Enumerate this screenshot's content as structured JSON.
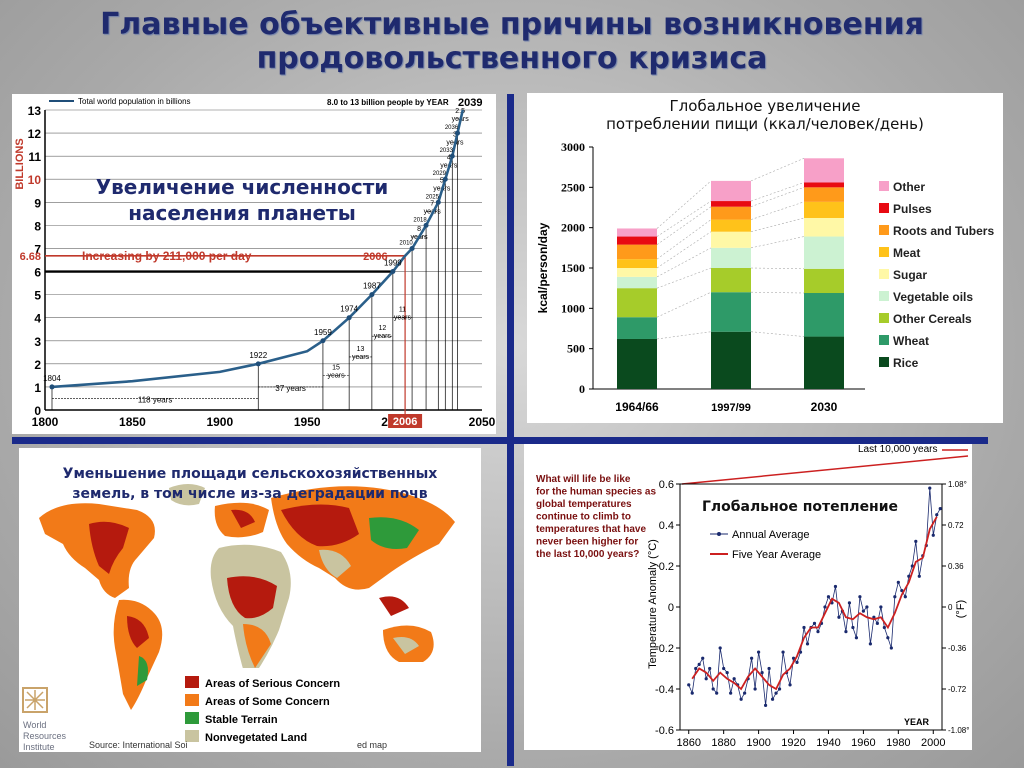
{
  "title": {
    "line1": "Главные  объективные причины возникновения",
    "line2": "продовольственного кризиса"
  },
  "panels": {
    "population": {
      "heading1": "Увеличение численности",
      "heading2": "населения планеты"
    },
    "food": {
      "heading1": "Глобальное  увеличение",
      "heading2": "потреблении пищи (ккал/человек/день)"
    },
    "land": {
      "heading1": "Уменьшение площади сельскохозяйственных",
      "heading2": "земель, в том числе из-за деградации почв"
    },
    "warming": {
      "heading": "Глобальное потепление"
    }
  },
  "chart_data": [
    {
      "type": "line",
      "legend": "Total world population in billions",
      "top_note": "8.0  to  13 billion people by YEAR",
      "top_year": "2039",
      "ylabel": "BILLIONS",
      "xlim": [
        1800,
        2050
      ],
      "ylim": [
        0,
        13
      ],
      "x_ticks": [
        1800,
        1850,
        1900,
        1950,
        2000,
        2050
      ],
      "y_ticks": [
        0,
        1,
        2,
        3,
        4,
        5,
        6,
        7,
        8,
        9,
        10,
        11,
        12,
        13
      ],
      "x": [
        1804,
        1850,
        1900,
        1922,
        1950,
        1959,
        1974,
        1987,
        1999,
        2006,
        2010,
        2018,
        2025,
        2029,
        2033,
        2036,
        2039
      ],
      "y": [
        1,
        1.25,
        1.65,
        2,
        2.55,
        3,
        4,
        5,
        6,
        6.68,
        7,
        8,
        9,
        10,
        11,
        12,
        13
      ],
      "milestones": [
        {
          "year": "1804",
          "pop": 1
        },
        {
          "year": "1922",
          "pop": 2
        },
        {
          "year": "1959",
          "pop": 3
        },
        {
          "year": "1974",
          "pop": 4
        },
        {
          "year": "1987",
          "pop": 5
        },
        {
          "year": "1999",
          "pop": 6
        },
        {
          "year": "2010",
          "pop": 7
        },
        {
          "year": "2018",
          "pop": 8
        },
        {
          "year": "2025",
          "pop": 9
        },
        {
          "year": "2029",
          "pop": 10
        },
        {
          "year": "2033",
          "pop": 11
        },
        {
          "year": "2036",
          "pop": 12
        }
      ],
      "intervals": [
        {
          "label": "118 years",
          "from": 1804,
          "to": 1922,
          "y": 0.5
        },
        {
          "label": "37 years",
          "from": 1922,
          "to": 1959,
          "y": 1.0
        },
        {
          "label": "15 years",
          "from": 1959,
          "to": 1974,
          "y": 1.5
        },
        {
          "label": "13 years",
          "from": 1974,
          "to": 1987,
          "y": 2.3
        },
        {
          "label": "12 years",
          "from": 1987,
          "to": 1999,
          "y": 3.2
        },
        {
          "label": "11 years",
          "from": 1999,
          "to": 2010,
          "y": 4.0
        },
        {
          "label": "8 years",
          "from": 2010,
          "to": 2018,
          "y": 7.5
        },
        {
          "label": "7 years",
          "from": 2018,
          "to": 2025,
          "y": 8.6
        },
        {
          "label": "5 years",
          "from": 2025,
          "to": 2029,
          "y": 9.6
        },
        {
          "label": "4 years",
          "from": 2029,
          "to": 2033,
          "y": 10.6
        },
        {
          "label": "3 years",
          "from": 2033,
          "to": 2036,
          "y": 11.6
        },
        {
          "label": "2.5 years",
          "from": 2036,
          "to": 2039,
          "y": 12.6
        }
      ],
      "highlight": {
        "value": "6.68",
        "year": "2006",
        "label": "Increasing by 211,000 per day"
      }
    },
    {
      "type": "bar",
      "stacked": true,
      "ylabel": "kcal/person/day",
      "ylim": [
        0,
        3000
      ],
      "y_ticks": [
        0,
        500,
        1000,
        1500,
        2000,
        2500,
        3000
      ],
      "categories": [
        "1964/66",
        "1997/99",
        "2030"
      ],
      "series": [
        {
          "name": "Rice",
          "color": "#0a4a1e",
          "values": [
            620,
            710,
            650
          ]
        },
        {
          "name": "Wheat",
          "color": "#2e9a68",
          "values": [
            270,
            490,
            540
          ]
        },
        {
          "name": "Other Cereals",
          "color": "#a6cc2a",
          "values": [
            360,
            300,
            300
          ]
        },
        {
          "name": "Vegetable oils",
          "color": "#ccf2d2",
          "values": [
            140,
            250,
            400
          ]
        },
        {
          "name": "Sugar",
          "color": "#fff8a6",
          "values": [
            110,
            200,
            230
          ]
        },
        {
          "name": "Meat",
          "color": "#ffc21a",
          "values": [
            110,
            150,
            200
          ]
        },
        {
          "name": "Roots and Tubers",
          "color": "#ff9a1a",
          "values": [
            180,
            160,
            180
          ]
        },
        {
          "name": "Pulses",
          "color": "#e80a12",
          "values": [
            100,
            70,
            60
          ]
        },
        {
          "name": "Other",
          "color": "#f7a0c8",
          "values": [
            100,
            250,
            300
          ]
        }
      ]
    },
    {
      "type": "map",
      "legend": [
        {
          "name": "Areas of Serious Concern",
          "color": "#b51a0e"
        },
        {
          "name": "Areas of Some Concern",
          "color": "#f27a18"
        },
        {
          "name": "Stable Terrain",
          "color": "#2e9a3a"
        },
        {
          "name": "Nonvegetated Land",
          "color": "#c9c4a0"
        }
      ],
      "logo": "World Resources Institute",
      "source": "Source: International Soi",
      "source_tail": "ed map"
    },
    {
      "type": "line",
      "question": "What will life be like for the human species as global temperatures continue to climb to temperatures that have never been higher for the last 10,000 years?",
      "banner": "Last 10,000 years",
      "ylabel": "Temperature Anomaly (°C)",
      "ylabel_right": "(°F)",
      "xlabel": "YEAR",
      "xlim": [
        1855,
        2005
      ],
      "ylim": [
        -0.6,
        0.6
      ],
      "x_ticks": [
        1860,
        1880,
        1900,
        1920,
        1940,
        1960,
        1980,
        2000
      ],
      "y_ticks": [
        -0.6,
        -0.4,
        -0.2,
        0,
        0.2,
        0.4,
        0.6
      ],
      "right_ticks": [
        {
          "label": "1.08°",
          "c": 0.6
        },
        {
          "label": "0.72",
          "c": 0.4
        },
        {
          "label": "0.36",
          "c": 0.2
        },
        {
          "label": "0",
          "c": 0
        },
        {
          "label": "-0.36",
          "c": -0.2
        },
        {
          "label": "-0.72",
          "c": -0.4
        },
        {
          "label": "-1.08°",
          "c": -0.6
        }
      ],
      "series": [
        {
          "name": "Annual Average",
          "color": "#1a2a6e",
          "x": [
            1860,
            1862,
            1864,
            1866,
            1868,
            1870,
            1872,
            1874,
            1876,
            1878,
            1880,
            1882,
            1884,
            1886,
            1888,
            1890,
            1892,
            1894,
            1896,
            1898,
            1900,
            1902,
            1904,
            1906,
            1908,
            1910,
            1912,
            1914,
            1916,
            1918,
            1920,
            1922,
            1924,
            1926,
            1928,
            1930,
            1932,
            1934,
            1936,
            1938,
            1940,
            1942,
            1944,
            1946,
            1948,
            1950,
            1952,
            1954,
            1956,
            1958,
            1960,
            1962,
            1964,
            1966,
            1968,
            1970,
            1972,
            1974,
            1976,
            1978,
            1980,
            1982,
            1984,
            1986,
            1988,
            1990,
            1992,
            1994,
            1996,
            1998,
            2000,
            2002,
            2004
          ],
          "y": [
            -0.38,
            -0.42,
            -0.3,
            -0.28,
            -0.25,
            -0.35,
            -0.3,
            -0.4,
            -0.42,
            -0.2,
            -0.3,
            -0.32,
            -0.42,
            -0.35,
            -0.38,
            -0.45,
            -0.42,
            -0.35,
            -0.25,
            -0.4,
            -0.22,
            -0.32,
            -0.48,
            -0.3,
            -0.45,
            -0.42,
            -0.4,
            -0.22,
            -0.32,
            -0.38,
            -0.25,
            -0.27,
            -0.22,
            -0.1,
            -0.18,
            -0.1,
            -0.08,
            -0.12,
            -0.08,
            0.0,
            0.05,
            0.02,
            0.1,
            -0.05,
            -0.02,
            -0.12,
            0.02,
            -0.1,
            -0.15,
            0.05,
            -0.02,
            0.0,
            -0.18,
            -0.05,
            -0.08,
            0.0,
            -0.1,
            -0.15,
            -0.2,
            0.05,
            0.12,
            0.08,
            0.05,
            0.15,
            0.2,
            0.32,
            0.15,
            0.25,
            0.3,
            0.58,
            0.35,
            0.45,
            0.48
          ]
        },
        {
          "name": "Five Year Average",
          "color": "#cc2020",
          "x": [
            1862,
            1866,
            1870,
            1874,
            1878,
            1882,
            1886,
            1890,
            1894,
            1898,
            1902,
            1906,
            1910,
            1914,
            1918,
            1922,
            1926,
            1930,
            1934,
            1938,
            1942,
            1946,
            1950,
            1954,
            1958,
            1962,
            1966,
            1970,
            1974,
            1978,
            1982,
            1986,
            1990,
            1994,
            1998,
            2002
          ],
          "y": [
            -0.35,
            -0.3,
            -0.32,
            -0.36,
            -0.32,
            -0.35,
            -0.37,
            -0.4,
            -0.34,
            -0.3,
            -0.34,
            -0.38,
            -0.4,
            -0.33,
            -0.3,
            -0.24,
            -0.15,
            -0.1,
            -0.1,
            -0.03,
            0.04,
            0.02,
            -0.05,
            -0.06,
            -0.03,
            -0.05,
            -0.06,
            -0.05,
            -0.1,
            -0.03,
            0.06,
            0.12,
            0.22,
            0.24,
            0.38,
            0.44
          ]
        }
      ]
    }
  ]
}
